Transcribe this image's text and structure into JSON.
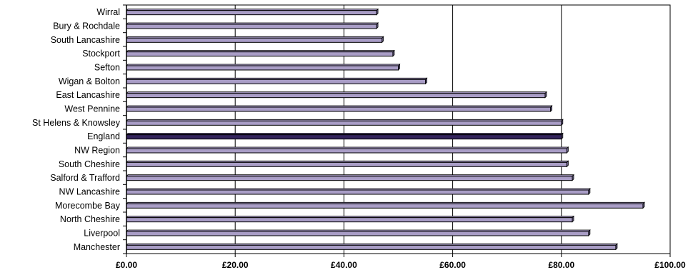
{
  "chart_data": {
    "type": "bar",
    "orientation": "horizontal",
    "title": "",
    "xlabel": "",
    "ylabel": "",
    "categories": [
      "Wirral",
      "Bury & Rochdale",
      "South Lancashire",
      "Stockport",
      "Sefton",
      "Wigan & Bolton",
      "East Lancashire",
      "West Pennine",
      "St Helens & Knowsley",
      "England",
      "NW Region",
      "South Cheshire",
      "Salford & Trafford",
      "NW Lancashire",
      "Morecombe Bay",
      "North Cheshire",
      "Liverpool",
      "Manchester"
    ],
    "values": [
      46,
      46,
      47,
      49,
      50,
      55,
      77,
      78,
      80,
      80,
      81,
      81,
      82,
      85,
      95,
      82,
      85,
      90
    ],
    "highlight_category": "England",
    "xlim": [
      0,
      100
    ],
    "xticks": [
      0,
      20,
      40,
      60,
      80,
      100
    ],
    "xtick_labels": [
      "£0.00",
      "£20.00",
      "£40.00",
      "£60.00",
      "£80.00",
      "£100.00"
    ],
    "grid": "vertical",
    "legend": "none",
    "colors": {
      "bar": "#a99dc6",
      "highlight_bar": "#33235c",
      "outline": "#000000"
    }
  }
}
